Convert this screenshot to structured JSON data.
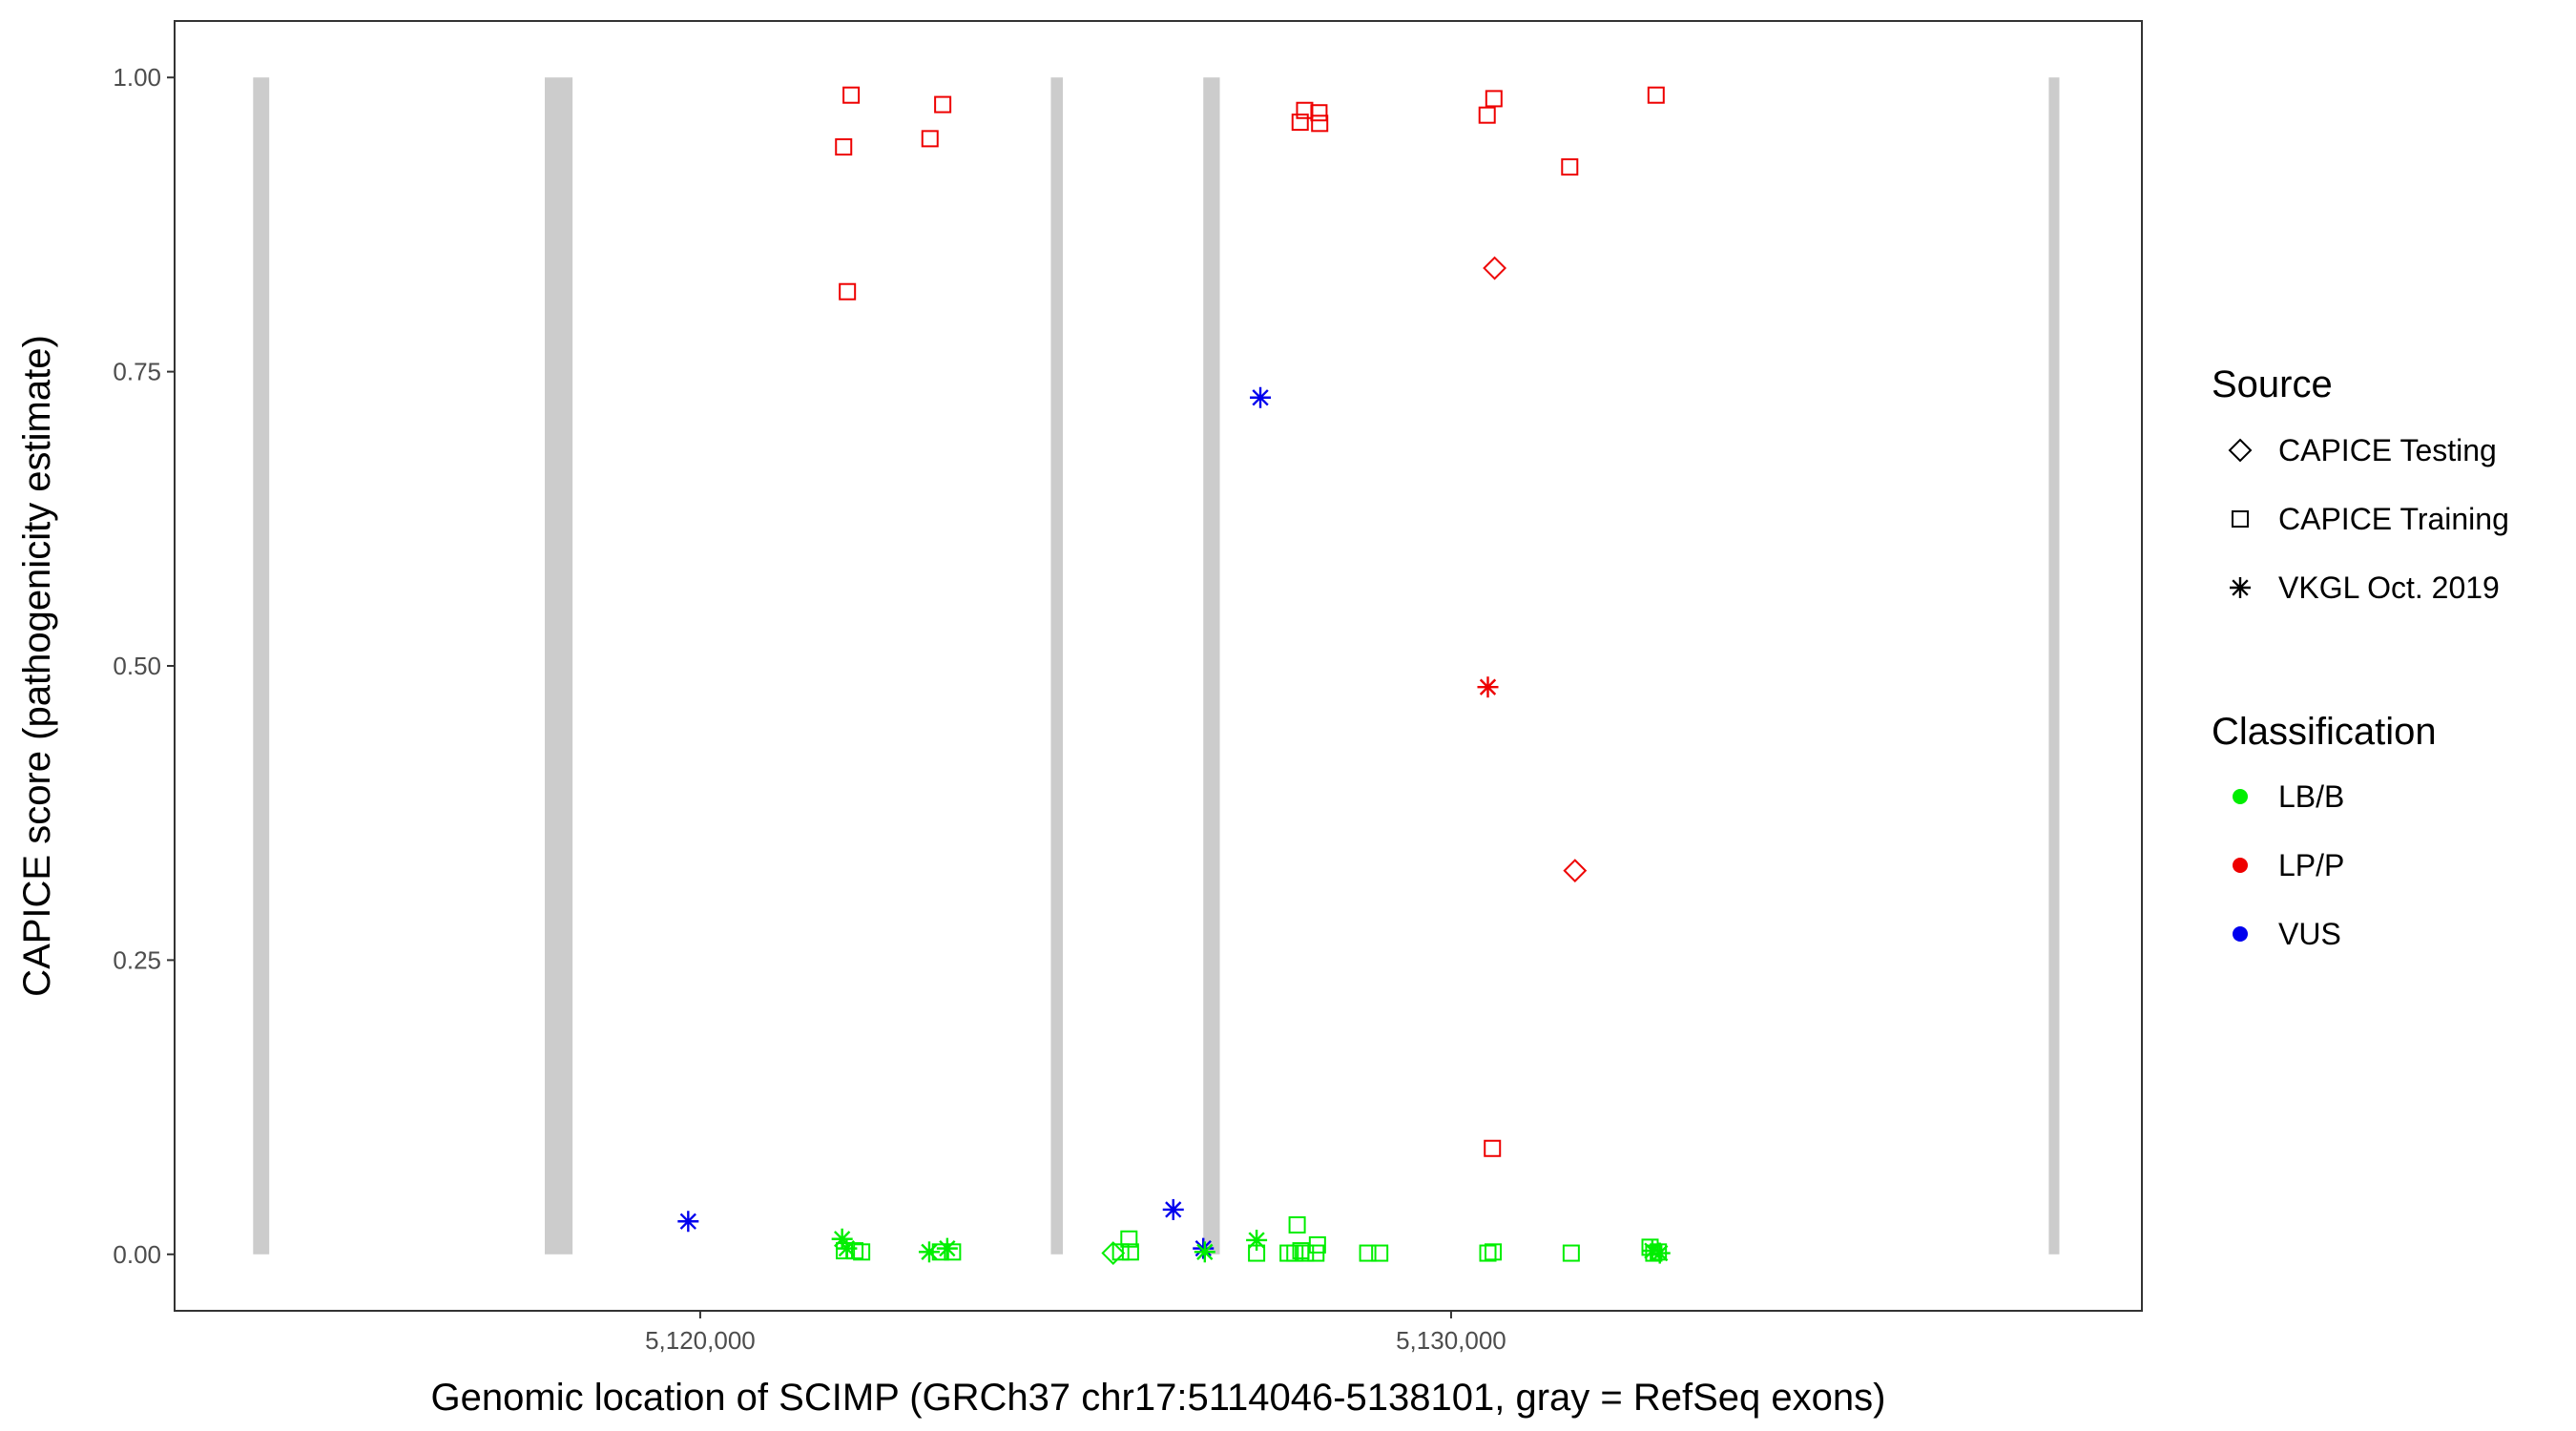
{
  "chart_data": {
    "type": "scatter",
    "title": "",
    "xlabel": "Genomic location of SCIMP (GRCh37 chr17:5114046-5138101, gray = RefSeq exons)",
    "ylabel": "CAPICE score (pathogenicity estimate)",
    "xlim": [
      5113000,
      5139200
    ],
    "ylim": [
      -0.048,
      1.048
    ],
    "x_ticks": [
      5120000,
      5130000
    ],
    "x_tick_labels": [
      "5,120,000",
      "5,130,000"
    ],
    "y_ticks": [
      0,
      0.25,
      0.5,
      0.75,
      1.0
    ],
    "y_tick_labels": [
      "0.00",
      "0.25",
      "0.50",
      "0.75",
      "1.00"
    ],
    "grid": false,
    "legend_position": "right",
    "exons": [
      {
        "start": 5114046,
        "end": 5114260
      },
      {
        "start": 5117930,
        "end": 5118300
      },
      {
        "start": 5124670,
        "end": 5124830
      },
      {
        "start": 5126700,
        "end": 5126920
      },
      {
        "start": 5137960,
        "end": 5138101
      }
    ],
    "legend": {
      "source_title": "Source",
      "sources": [
        {
          "key": "testing",
          "label": "CAPICE Testing",
          "shape": "diamond"
        },
        {
          "key": "training",
          "label": "CAPICE Training",
          "shape": "square"
        },
        {
          "key": "vkgl",
          "label": "VKGL Oct. 2019",
          "shape": "asterisk"
        }
      ],
      "class_title": "Classification",
      "classes": [
        {
          "key": "LB/B",
          "label": "LB/B",
          "color": "#00EE00"
        },
        {
          "key": "LP/P",
          "label": "LP/P",
          "color": "#EE0000"
        },
        {
          "key": "VUS",
          "label": "VUS",
          "color": "#0000EE"
        }
      ]
    },
    "points": [
      {
        "x": 5121910,
        "y": 0.941,
        "source": "training",
        "class": "LP/P"
      },
      {
        "x": 5122010,
        "y": 0.985,
        "source": "training",
        "class": "LP/P"
      },
      {
        "x": 5121960,
        "y": 0.818,
        "source": "training",
        "class": "LP/P"
      },
      {
        "x": 5123060,
        "y": 0.948,
        "source": "training",
        "class": "LP/P"
      },
      {
        "x": 5123230,
        "y": 0.977,
        "source": "training",
        "class": "LP/P"
      },
      {
        "x": 5128050,
        "y": 0.972,
        "source": "training",
        "class": "LP/P"
      },
      {
        "x": 5127990,
        "y": 0.962,
        "source": "training",
        "class": "LP/P"
      },
      {
        "x": 5128240,
        "y": 0.97,
        "source": "training",
        "class": "LP/P"
      },
      {
        "x": 5128250,
        "y": 0.961,
        "source": "training",
        "class": "LP/P"
      },
      {
        "x": 5130480,
        "y": 0.968,
        "source": "training",
        "class": "LP/P"
      },
      {
        "x": 5130570,
        "y": 0.982,
        "source": "training",
        "class": "LP/P"
      },
      {
        "x": 5131580,
        "y": 0.924,
        "source": "training",
        "class": "LP/P"
      },
      {
        "x": 5132730,
        "y": 0.985,
        "source": "training",
        "class": "LP/P"
      },
      {
        "x": 5130550,
        "y": 0.09,
        "source": "training",
        "class": "LP/P"
      },
      {
        "x": 5130580,
        "y": 0.838,
        "source": "testing",
        "class": "LP/P"
      },
      {
        "x": 5131650,
        "y": 0.326,
        "source": "testing",
        "class": "LP/P"
      },
      {
        "x": 5130490,
        "y": 0.482,
        "source": "vkgl",
        "class": "LP/P"
      },
      {
        "x": 5127460,
        "y": 0.728,
        "source": "vkgl",
        "class": "VUS"
      },
      {
        "x": 5119840,
        "y": 0.028,
        "source": "vkgl",
        "class": "VUS"
      },
      {
        "x": 5126300,
        "y": 0.038,
        "source": "vkgl",
        "class": "VUS"
      },
      {
        "x": 5126700,
        "y": 0.005,
        "source": "vkgl",
        "class": "VUS"
      },
      {
        "x": 5121890,
        "y": 0.013,
        "source": "vkgl",
        "class": "LB/B"
      },
      {
        "x": 5121950,
        "y": 0.005,
        "source": "vkgl",
        "class": "LB/B"
      },
      {
        "x": 5121920,
        "y": 0.003,
        "source": "training",
        "class": "LB/B"
      },
      {
        "x": 5122060,
        "y": 0.003,
        "source": "training",
        "class": "LB/B"
      },
      {
        "x": 5122150,
        "y": 0.002,
        "source": "training",
        "class": "LB/B"
      },
      {
        "x": 5123050,
        "y": 0.002,
        "source": "vkgl",
        "class": "LB/B"
      },
      {
        "x": 5123290,
        "y": 0.005,
        "source": "vkgl",
        "class": "LB/B"
      },
      {
        "x": 5123200,
        "y": 0.002,
        "source": "training",
        "class": "LB/B"
      },
      {
        "x": 5123360,
        "y": 0.002,
        "source": "training",
        "class": "LB/B"
      },
      {
        "x": 5125500,
        "y": 0.001,
        "source": "testing",
        "class": "LB/B"
      },
      {
        "x": 5125600,
        "y": 0.002,
        "source": "training",
        "class": "LB/B"
      },
      {
        "x": 5125710,
        "y": 0.013,
        "source": "training",
        "class": "LB/B"
      },
      {
        "x": 5125730,
        "y": 0.002,
        "source": "training",
        "class": "LB/B"
      },
      {
        "x": 5126720,
        "y": 0.002,
        "source": "vkgl",
        "class": "LB/B"
      },
      {
        "x": 5127410,
        "y": 0.012,
        "source": "vkgl",
        "class": "LB/B"
      },
      {
        "x": 5127410,
        "y": 0.001,
        "source": "training",
        "class": "LB/B"
      },
      {
        "x": 5127830,
        "y": 0.001,
        "source": "training",
        "class": "LB/B"
      },
      {
        "x": 5127920,
        "y": 0.001,
        "source": "training",
        "class": "LB/B"
      },
      {
        "x": 5127950,
        "y": 0.025,
        "source": "training",
        "class": "LB/B"
      },
      {
        "x": 5128000,
        "y": 0.003,
        "source": "training",
        "class": "LB/B"
      },
      {
        "x": 5128060,
        "y": 0.001,
        "source": "training",
        "class": "LB/B"
      },
      {
        "x": 5128220,
        "y": 0.008,
        "source": "training",
        "class": "LB/B"
      },
      {
        "x": 5128200,
        "y": 0.001,
        "source": "training",
        "class": "LB/B"
      },
      {
        "x": 5128890,
        "y": 0.001,
        "source": "training",
        "class": "LB/B"
      },
      {
        "x": 5129050,
        "y": 0.001,
        "source": "training",
        "class": "LB/B"
      },
      {
        "x": 5130490,
        "y": 0.001,
        "source": "training",
        "class": "LB/B"
      },
      {
        "x": 5130560,
        "y": 0.002,
        "source": "training",
        "class": "LB/B"
      },
      {
        "x": 5131600,
        "y": 0.001,
        "source": "training",
        "class": "LB/B"
      },
      {
        "x": 5132650,
        "y": 0.006,
        "source": "training",
        "class": "LB/B"
      },
      {
        "x": 5132700,
        "y": 0.001,
        "source": "training",
        "class": "LB/B"
      },
      {
        "x": 5132760,
        "y": 0.002,
        "source": "training",
        "class": "LB/B"
      },
      {
        "x": 5132680,
        "y": 0.003,
        "source": "vkgl",
        "class": "LB/B"
      },
      {
        "x": 5132780,
        "y": 0.001,
        "source": "vkgl",
        "class": "LB/B"
      }
    ]
  }
}
